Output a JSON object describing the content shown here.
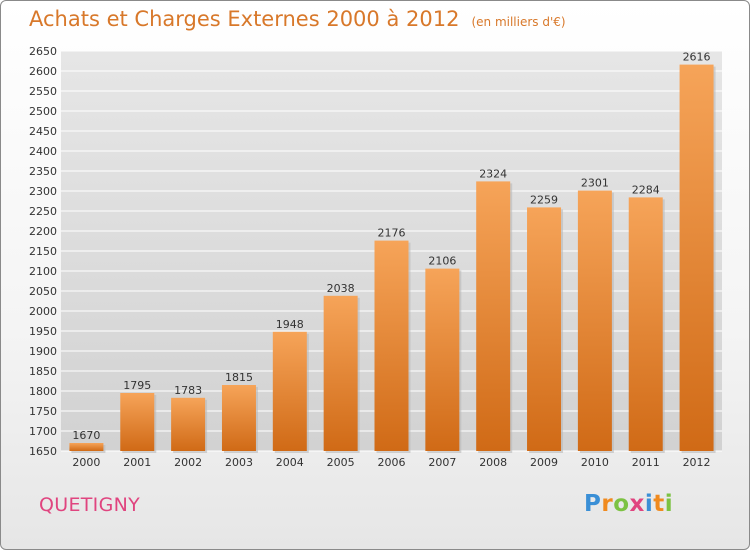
{
  "title": "Achats et Charges Externes 2000 à 2012",
  "subtitle": "(en milliers d'€)",
  "commune": "QUETIGNY",
  "logo": {
    "letters": [
      "P",
      "r",
      "o",
      "x",
      "i",
      "t",
      "i"
    ],
    "colors": [
      "#3a8fd6",
      "#f08a1e",
      "#7cc242",
      "#e0447f",
      "#3a8fd6",
      "#f08a1e",
      "#7cc242"
    ]
  },
  "colors": {
    "bar_top": "#f6a459",
    "bar_bottom": "#d06a16",
    "text_orange": "#d8782a",
    "commune_pink": "#e0447f",
    "grid": "#ffffff",
    "plot_bg": "#dcdcdc"
  },
  "chart_data": {
    "type": "bar",
    "title": "Achats et Charges Externes 2000 à 2012",
    "subtitle": "(en milliers d'€)",
    "categories": [
      "2000",
      "2001",
      "2002",
      "2003",
      "2004",
      "2005",
      "2006",
      "2007",
      "2008",
      "2009",
      "2010",
      "2011",
      "2012"
    ],
    "values": [
      1670,
      1795,
      1783,
      1815,
      1948,
      2038,
      2176,
      2106,
      2324,
      2259,
      2301,
      2284,
      2616
    ],
    "ylim": [
      1650,
      2650
    ],
    "yticks": [
      1650,
      1700,
      1750,
      1800,
      1850,
      1900,
      1950,
      2000,
      2050,
      2100,
      2150,
      2200,
      2250,
      2300,
      2350,
      2400,
      2450,
      2500,
      2550,
      2600,
      2650
    ],
    "grid": true,
    "data_labels": true
  }
}
